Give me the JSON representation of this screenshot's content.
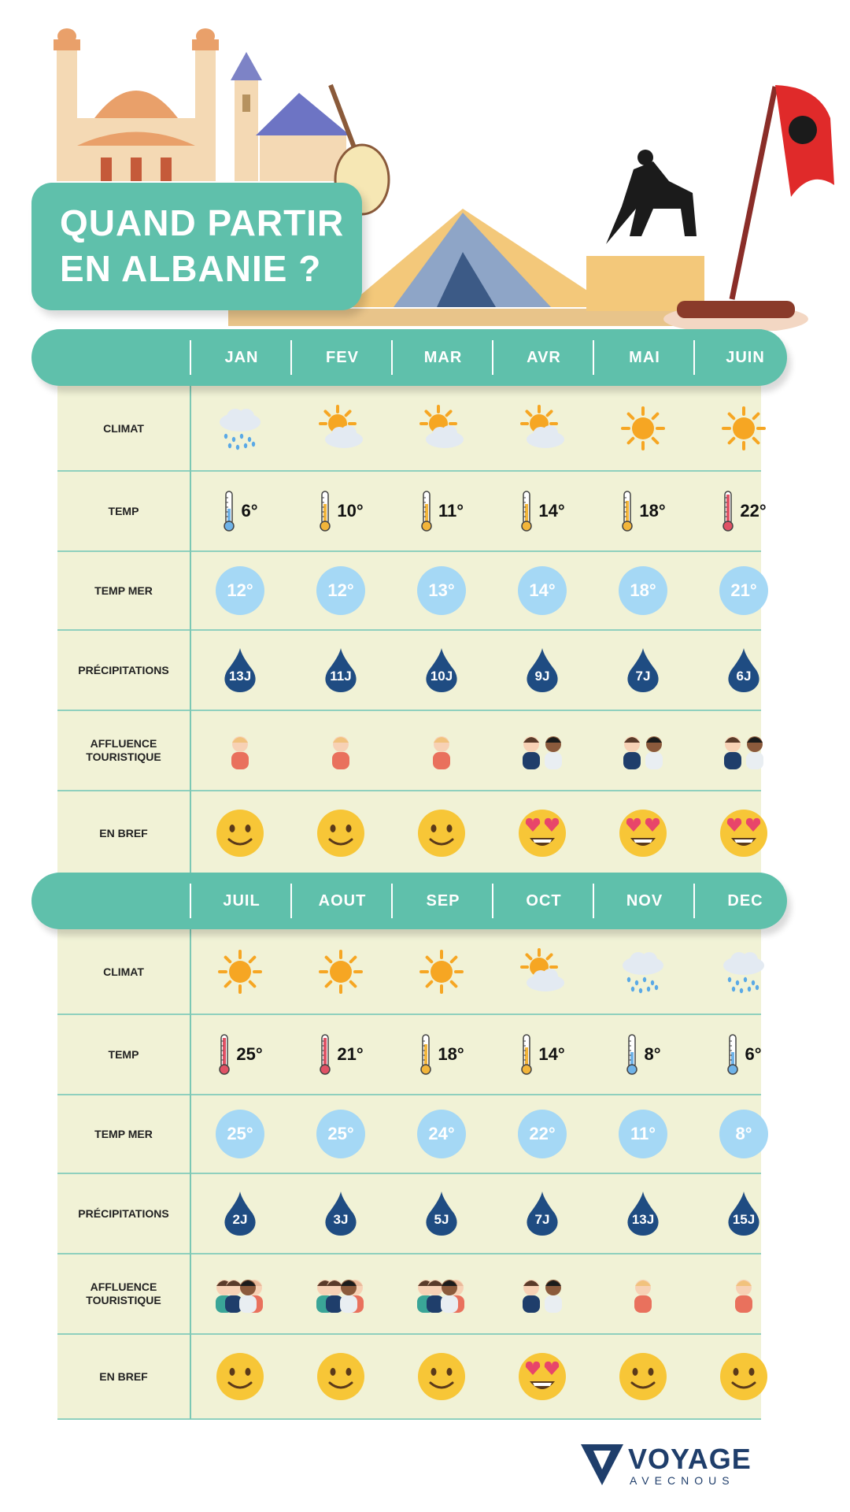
{
  "title_lines": [
    "QUAND PARTIR",
    "EN ALBANIE ?"
  ],
  "row_labels": {
    "climat": "CLIMAT",
    "temp": "TEMP",
    "temp_mer": "TEMP MER",
    "precipitations": "PRÉCIPITATIONS",
    "affluence_1": "AFFLUENCE",
    "affluence_2": "TOURISTIQUE",
    "en_bref": "EN BREF"
  },
  "sections": [
    {
      "months": [
        {
          "name": "JAN",
          "climate": "rain-cloud-icon",
          "temp": "6°",
          "thermo": "cold",
          "sea": "12°",
          "precip": "13J",
          "crowd": "low",
          "mood": "smile-emoji"
        },
        {
          "name": "FEV",
          "climate": "sun-behind-cloud-icon",
          "temp": "10°",
          "thermo": "cool",
          "sea": "12°",
          "precip": "11J",
          "crowd": "low",
          "mood": "smile-emoji"
        },
        {
          "name": "MAR",
          "climate": "sun-behind-cloud-icon",
          "temp": "11°",
          "thermo": "cool",
          "sea": "13°",
          "precip": "10J",
          "crowd": "low",
          "mood": "smile-emoji"
        },
        {
          "name": "AVR",
          "climate": "sun-behind-cloud-icon",
          "temp": "14°",
          "thermo": "cool",
          "sea": "14°",
          "precip": "9J",
          "crowd": "medium",
          "mood": "heart-eyes-emoji"
        },
        {
          "name": "MAI",
          "climate": "sun-icon",
          "temp": "18°",
          "thermo": "mild",
          "sea": "18°",
          "precip": "7J",
          "crowd": "medium",
          "mood": "heart-eyes-emoji"
        },
        {
          "name": "JUIN",
          "climate": "sun-icon",
          "temp": "22°",
          "thermo": "hot",
          "sea": "21°",
          "precip": "6J",
          "crowd": "medium",
          "mood": "heart-eyes-emoji"
        }
      ]
    },
    {
      "months": [
        {
          "name": "JUIL",
          "climate": "sun-icon",
          "temp": "25°",
          "thermo": "hot",
          "sea": "25°",
          "precip": "2J",
          "crowd": "high",
          "mood": "smile-emoji"
        },
        {
          "name": "AOUT",
          "climate": "sun-icon",
          "temp": "21°",
          "thermo": "hot",
          "sea": "25°",
          "precip": "3J",
          "crowd": "high",
          "mood": "smile-emoji"
        },
        {
          "name": "SEP",
          "climate": "sun-icon",
          "temp": "18°",
          "thermo": "mild",
          "sea": "24°",
          "precip": "5J",
          "crowd": "high",
          "mood": "smile-emoji"
        },
        {
          "name": "OCT",
          "climate": "sun-behind-cloud-icon",
          "temp": "14°",
          "thermo": "cool",
          "sea": "22°",
          "precip": "7J",
          "crowd": "medium",
          "mood": "heart-eyes-emoji"
        },
        {
          "name": "NOV",
          "climate": "rain-cloud-icon",
          "temp": "8°",
          "thermo": "cold",
          "sea": "11°",
          "precip": "13J",
          "crowd": "low",
          "mood": "smile-emoji"
        },
        {
          "name": "DEC",
          "climate": "rain-cloud-icon",
          "temp": "6°",
          "thermo": "cold",
          "sea": "8°",
          "precip": "15J",
          "crowd": "low",
          "mood": "smile-emoji"
        }
      ]
    }
  ],
  "colors": {
    "teal": "#5fc0ab",
    "table_bg": "#f1f2d6",
    "sea_circle": "#a5d8f5",
    "drop": "#1f4c82",
    "thermo_cold": "#6fb3e8",
    "thermo_cool": "#f2b53a",
    "thermo_mild": "#f2b53a",
    "thermo_hot": "#e05265",
    "sun": "#f6a623",
    "cloud": "#e3eaf2",
    "rain": "#5aa9e6",
    "emoji": "#f7c637"
  },
  "logo": {
    "brand": "VOYAGE",
    "sub": "AVECNOUS"
  }
}
